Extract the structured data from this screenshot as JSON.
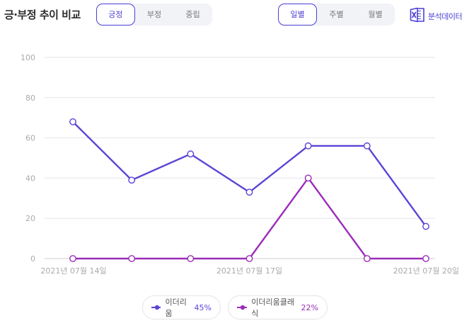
{
  "header": {
    "title": "긍·부정 추이 비교"
  },
  "sentiment_tabs": [
    {
      "label": "긍정",
      "active": true
    },
    {
      "label": "부정",
      "active": false
    },
    {
      "label": "중립",
      "active": false
    }
  ],
  "period_tabs": [
    {
      "label": "일별",
      "active": true
    },
    {
      "label": "주별",
      "active": false
    },
    {
      "label": "월별",
      "active": false
    }
  ],
  "analysis_button": {
    "label": "분석데이터",
    "icon": "excel-icon",
    "color": "#4b3fd6"
  },
  "legend": [
    {
      "name": "이더리움",
      "percent": "45%",
      "color": "#5a45d6"
    },
    {
      "name": "이더리움클래식",
      "percent": "22%",
      "color": "#9b2db8"
    }
  ],
  "chart_data": {
    "type": "line",
    "x": [
      "2021-07-14",
      "2021-07-15",
      "2021-07-16",
      "2021-07-17",
      "2021-07-18",
      "2021-07-19",
      "2021-07-20"
    ],
    "x_tick_labels": [
      "2021년 07월 14일",
      "",
      "",
      "2021년 07월 17일",
      "",
      "",
      "2021년 07월 20일"
    ],
    "y_tick_labels": [
      "0",
      "20",
      "40",
      "60",
      "80",
      "100"
    ],
    "ylim": [
      0,
      100
    ],
    "grid": true,
    "series": [
      {
        "name": "이더리움",
        "values": [
          68,
          39,
          52,
          33,
          56,
          56,
          16
        ],
        "color": "#5a45d6"
      },
      {
        "name": "이더리움클래식",
        "values": [
          0,
          0,
          0,
          0,
          40,
          0,
          0
        ],
        "color": "#9b2db8"
      }
    ]
  }
}
